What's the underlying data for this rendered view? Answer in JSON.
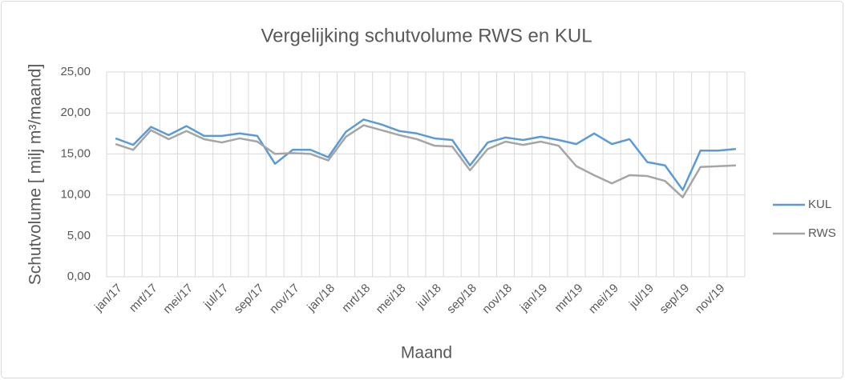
{
  "chart_data": {
    "type": "line",
    "title": "Vergelijking schutvolume RWS en KUL",
    "x_label": "Maand",
    "y_label": "Schutvolume [ milj m³/maand]",
    "categories": [
      "jan/17",
      null,
      "mrt/17",
      null,
      "mei/17",
      null,
      "jul/17",
      null,
      "sep/17",
      null,
      "nov/17",
      null,
      "jan/18",
      null,
      "mrt/18",
      null,
      "mei/18",
      null,
      "jul/18",
      null,
      "sep/18",
      null,
      "nov/18",
      null,
      "jan/19",
      null,
      "mrt/19",
      null,
      "mei/19",
      null,
      "jul/19",
      null,
      "sep/19",
      null,
      "nov/19",
      null
    ],
    "series": [
      {
        "name": "KUL",
        "color": "#5b9bd5",
        "values": [
          16.9,
          16.1,
          18.3,
          17.3,
          18.4,
          17.2,
          17.2,
          17.5,
          17.2,
          13.8,
          15.5,
          15.5,
          14.6,
          17.7,
          19.2,
          18.6,
          17.8,
          17.5,
          16.9,
          16.7,
          13.6,
          16.4,
          17.0,
          16.7,
          17.1,
          16.7,
          16.2,
          17.5,
          16.2,
          16.8,
          14.0,
          13.6,
          10.6,
          15.4,
          15.4,
          15.6
        ]
      },
      {
        "name": "RWS",
        "color": "#a5a5a5",
        "values": [
          16.2,
          15.5,
          17.9,
          16.8,
          17.8,
          16.8,
          16.4,
          16.9,
          16.5,
          15.0,
          15.1,
          15.0,
          14.2,
          17.1,
          18.5,
          17.9,
          17.3,
          16.8,
          16.0,
          15.9,
          13.0,
          15.6,
          16.5,
          16.1,
          16.5,
          16.0,
          13.5,
          12.4,
          11.4,
          12.4,
          12.3,
          11.7,
          9.7,
          13.4,
          13.5,
          13.6
        ]
      }
    ],
    "ylim": [
      0,
      25
    ],
    "yticks": [
      {
        "value": 0,
        "label": "0,00"
      },
      {
        "value": 5,
        "label": "5,00"
      },
      {
        "value": 10,
        "label": "10,00"
      },
      {
        "value": 15,
        "label": "15,00"
      },
      {
        "value": 20,
        "label": "20,00"
      },
      {
        "value": 25,
        "label": "25,00"
      }
    ],
    "grid": true,
    "legend": "right"
  }
}
